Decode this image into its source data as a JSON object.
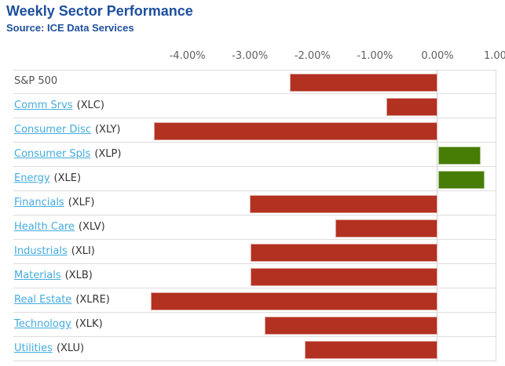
{
  "header": {
    "title": "Weekly Sector Performance",
    "source": "Source: ICE Data Services"
  },
  "colors": {
    "title": "#1e4f9c",
    "link": "#44acde",
    "label_text": "#555555",
    "ticker_text": "#333333",
    "axis_text": "#606060",
    "gridline": "#dddddd",
    "negative_bar": "#b23121",
    "positive_bar": "#477c05"
  },
  "chart_data": {
    "type": "bar",
    "orientation": "horizontal",
    "title": "Weekly Sector Performance",
    "subtitle": "Source: ICE Data Services",
    "unit": "%",
    "axis_position": "top",
    "legend": "none",
    "grid": "row separators, zero line, right plot border",
    "xlim": [
      -6.95,
      1.08
    ],
    "x_ticks": {
      "values": [
        -4,
        -3,
        -2,
        -1,
        0,
        1
      ],
      "labels": [
        "-4.00%",
        "-3.00%",
        "-2.00%",
        "-1.00%",
        "0.00%",
        "1.00%"
      ]
    },
    "categories": [
      "S&P 500",
      "Comm Srvs",
      "Consumer Disc",
      "Consumer Spls",
      "Energy",
      "Financials",
      "Health Care",
      "Industrials",
      "Materials",
      "Real Estate",
      "Technology",
      "Utilities"
    ],
    "tickers": [
      "",
      "(XLC)",
      "(XLY)",
      "(XLP)",
      "(XLE)",
      "(XLF)",
      "(XLV)",
      "(XLI)",
      "(XLB)",
      "(XLRE)",
      "(XLK)",
      "(XLU)"
    ],
    "label_is_link": [
      false,
      true,
      true,
      true,
      true,
      true,
      true,
      true,
      true,
      true,
      true,
      true
    ],
    "values": [
      -2.36,
      -0.82,
      -4.53,
      0.67,
      0.73,
      -3.0,
      -1.63,
      -2.99,
      -2.99,
      -4.59,
      -2.76,
      -2.12
    ]
  }
}
